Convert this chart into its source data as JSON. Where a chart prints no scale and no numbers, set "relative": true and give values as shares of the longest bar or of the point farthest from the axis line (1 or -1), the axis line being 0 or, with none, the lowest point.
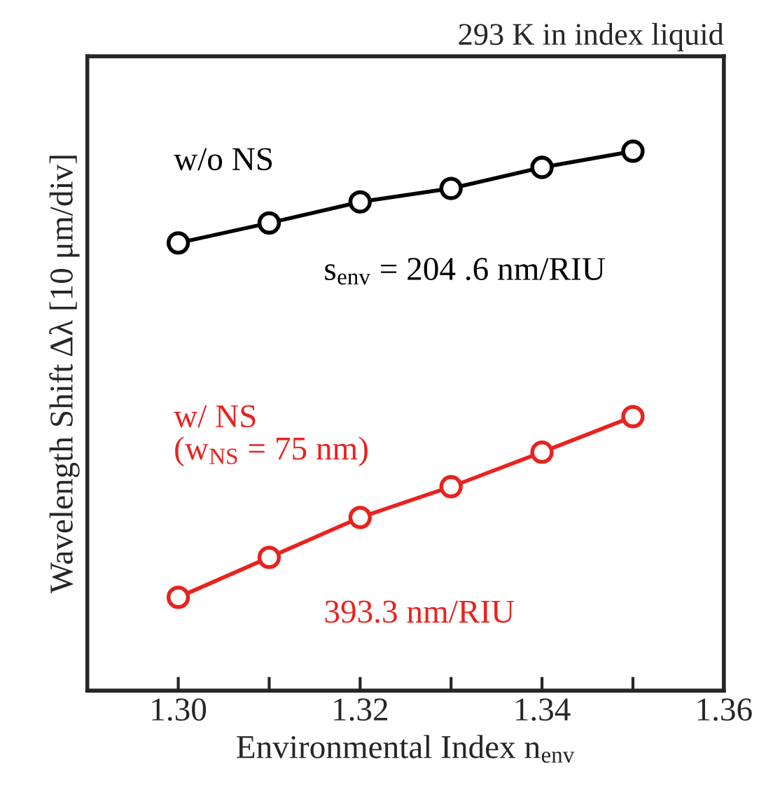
{
  "chart_data": {
    "type": "line",
    "title": "293 K in index liquid",
    "xlabel": "Environmental Index n$_{env}$",
    "ylabel": "Wavelength Shift Δλ [10 μm/div]",
    "x": [
      1.3,
      1.31,
      1.32,
      1.33,
      1.34,
      1.35
    ],
    "relative": true,
    "series": [
      {
        "name": "w/o NS",
        "color": "#000000",
        "values": [
          0.83,
          0.867,
          0.906,
          0.931,
          0.97,
          1.0
        ]
      },
      {
        "name": "w/ NS\n(w$_{NS}$ = 75 nm)",
        "color": "#e8231f",
        "values": [
          0.173,
          0.247,
          0.321,
          0.378,
          0.442,
          0.508
        ]
      }
    ],
    "annotations": [
      "s$_{env}$ = 204 .6 nm/RIU",
      "393.3 nm/RIU"
    ],
    "xlim": [
      1.29,
      1.36
    ],
    "xticks": [
      {
        "value": 1.3,
        "label": "1.30"
      },
      {
        "value": 1.31,
        "label": null
      },
      {
        "value": 1.32,
        "label": "1.32"
      },
      {
        "value": 1.33,
        "label": null
      },
      {
        "value": 1.34,
        "label": "1.34"
      },
      {
        "value": 1.35,
        "label": null
      },
      {
        "value": 1.36,
        "label": "1.36"
      }
    ],
    "marker": "circle",
    "line_style": "solid",
    "grid": false,
    "legend": false
  }
}
